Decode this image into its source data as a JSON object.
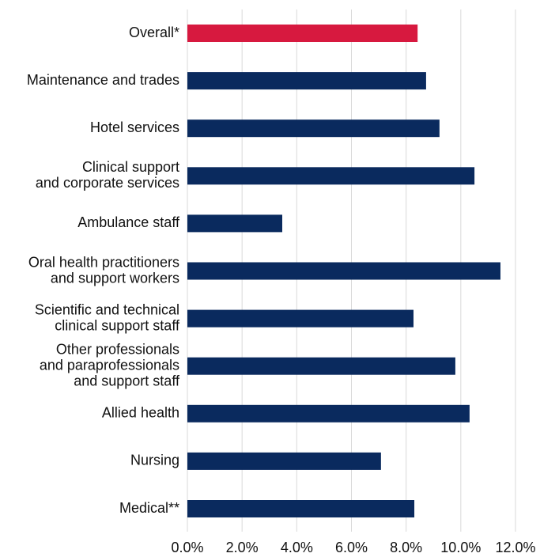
{
  "chart_data": {
    "type": "hbar",
    "categories": [
      [
        "Overall*"
      ],
      [
        "Maintenance and trades"
      ],
      [
        "Hotel services"
      ],
      [
        "Clinical support",
        "and corporate services"
      ],
      [
        "Ambulance staff"
      ],
      [
        "Oral health practitioners",
        "and support workers"
      ],
      [
        "Scientific and technical",
        "clinical support staff"
      ],
      [
        "Other professionals",
        "and paraprofessionals",
        "and support staff"
      ],
      [
        "Allied health"
      ],
      [
        "Nursing"
      ],
      [
        "Medical**"
      ]
    ],
    "values": [
      8.42,
      8.73,
      9.22,
      10.5,
      3.47,
      11.45,
      8.27,
      9.8,
      10.32,
      7.08,
      8.3
    ],
    "colors": [
      "#d7193f",
      "#0a2a5e",
      "#0a2a5e",
      "#0a2a5e",
      "#0a2a5e",
      "#0a2a5e",
      "#0a2a5e",
      "#0a2a5e",
      "#0a2a5e",
      "#0a2a5e",
      "#0a2a5e"
    ],
    "xlim": [
      0,
      12
    ],
    "xticks": [
      {
        "value": 0,
        "label": "0.0%"
      },
      {
        "value": 2,
        "label": "2.0%"
      },
      {
        "value": 4,
        "label": "4.0%"
      },
      {
        "value": 6,
        "label": "6.0%"
      },
      {
        "value": 8,
        "label": "8.0%"
      },
      {
        "value": 10,
        "label": "10.0%"
      },
      {
        "value": 12,
        "label": "12.0%"
      }
    ],
    "grid": true
  }
}
